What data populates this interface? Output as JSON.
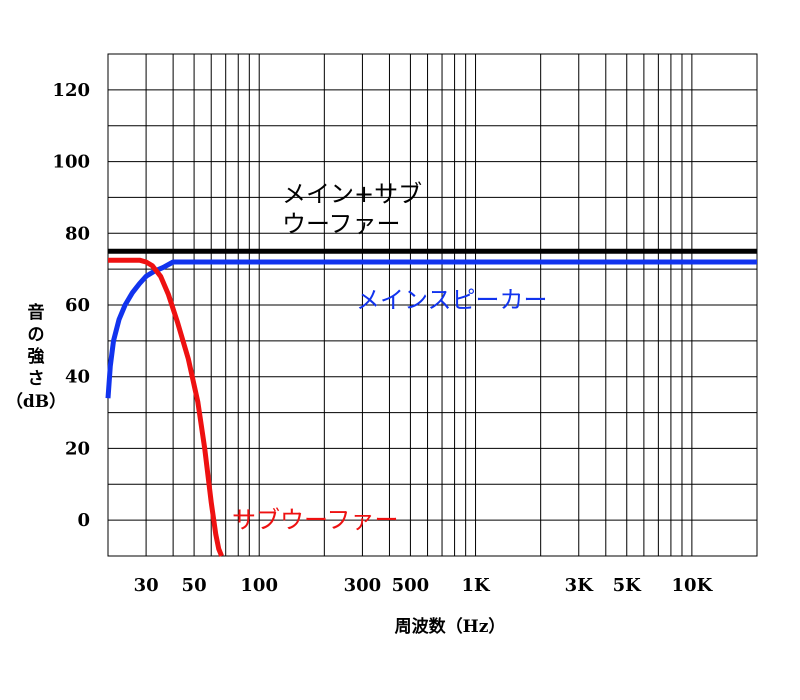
{
  "chart_data": {
    "type": "line",
    "xlabel": "周波数（Hz）",
    "ylabel_lines": [
      "音",
      "の",
      "強",
      "さ",
      "（dB）"
    ],
    "x_scale": "log",
    "xlim": [
      20,
      20000
    ],
    "ylim": [
      -10,
      130
    ],
    "grid": true,
    "x_ticks": [
      {
        "value": 30,
        "label": "30"
      },
      {
        "value": 50,
        "label": "50"
      },
      {
        "value": 100,
        "label": "100"
      },
      {
        "value": 300,
        "label": "300"
      },
      {
        "value": 500,
        "label": "500"
      },
      {
        "value": 1000,
        "label": "1K"
      },
      {
        "value": 3000,
        "label": "3K"
      },
      {
        "value": 5000,
        "label": "5K"
      },
      {
        "value": 10000,
        "label": "10K"
      }
    ],
    "y_ticks": [
      {
        "value": 0,
        "label": "0"
      },
      {
        "value": 20,
        "label": "20"
      },
      {
        "value": 40,
        "label": "40"
      },
      {
        "value": 60,
        "label": "60"
      },
      {
        "value": 80,
        "label": "80"
      },
      {
        "value": 100,
        "label": "100"
      },
      {
        "value": 120,
        "label": "120"
      }
    ],
    "series": [
      {
        "name_lines": [
          "メイン+サブ",
          "ウーファー"
        ],
        "color": "#000000",
        "x": [
          20,
          20000
        ],
        "y": [
          75,
          75
        ]
      },
      {
        "name_lines": [
          "メインスピーカー"
        ],
        "color": "#1133ee",
        "x": [
          20,
          20.5,
          21.2,
          22.5,
          24,
          26,
          28,
          30,
          33,
          36,
          40,
          50,
          100,
          1000,
          20000
        ],
        "y": [
          34,
          43,
          50,
          56,
          60,
          63.5,
          66,
          68,
          69.5,
          70.5,
          72,
          72,
          72,
          72,
          72
        ]
      },
      {
        "name_lines": [
          "サブウーファー"
        ],
        "color": "#ee1111",
        "x": [
          20,
          25,
          28,
          30,
          32,
          35,
          38,
          42,
          47,
          52,
          56,
          60,
          63,
          65,
          67
        ],
        "y": [
          72.5,
          72.5,
          72.5,
          72,
          71,
          68,
          63,
          55,
          45,
          33,
          20,
          5,
          -4,
          -8,
          -10
        ]
      }
    ]
  }
}
